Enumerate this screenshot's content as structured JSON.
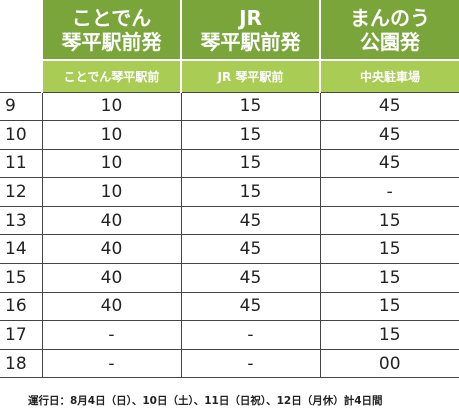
{
  "columns": [
    {
      "origin_line1": "ことでん",
      "origin_line2": "琴平駅前発",
      "stop": "ことでん琴平駅前"
    },
    {
      "origin_line1": "JR",
      "origin_line2": "琴平駅前発",
      "stop": "JR 琴平駅前"
    },
    {
      "origin_line1": "まんのう",
      "origin_line2": "公園発",
      "stop": "中央駐車場"
    }
  ],
  "rows": [
    {
      "hour": "9",
      "times": [
        "10",
        "15",
        "45"
      ]
    },
    {
      "hour": "10",
      "times": [
        "10",
        "15",
        "45"
      ]
    },
    {
      "hour": "11",
      "times": [
        "10",
        "15",
        "45"
      ]
    },
    {
      "hour": "12",
      "times": [
        "10",
        "15",
        "-"
      ]
    },
    {
      "hour": "13",
      "times": [
        "40",
        "45",
        "15"
      ]
    },
    {
      "hour": "14",
      "times": [
        "40",
        "45",
        "15"
      ]
    },
    {
      "hour": "15",
      "times": [
        "40",
        "45",
        "15"
      ]
    },
    {
      "hour": "16",
      "times": [
        "40",
        "45",
        "15"
      ]
    },
    {
      "hour": "17",
      "times": [
        "-",
        "-",
        "15"
      ]
    },
    {
      "hour": "18",
      "times": [
        "-",
        "-",
        "00"
      ]
    }
  ],
  "footnote": "運行日：8月4日（日）、10日（土）、11日（日祝）、12日（月休）計4日間",
  "colors": {
    "header_dark": "#7aa53a",
    "header_light": "#a9cc54",
    "header_text": "#ffffff"
  }
}
